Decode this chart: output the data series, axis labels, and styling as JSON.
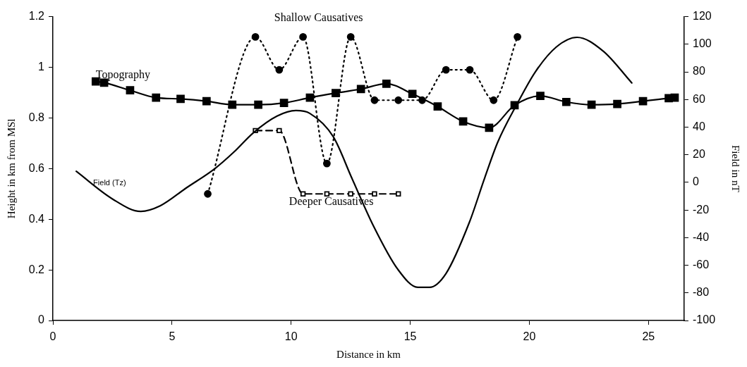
{
  "chart_data": {
    "type": "line",
    "xlabel": "Distance in km",
    "ylabel": "Height in km from MSl",
    "y2label": "Field in nT",
    "xlim": [
      0,
      26.5
    ],
    "xticks": [
      0,
      5,
      10,
      15,
      20,
      25
    ],
    "ylim": [
      0,
      1.2
    ],
    "yticks": [
      0,
      0.2,
      0.4,
      0.6,
      0.8,
      1,
      1.2
    ],
    "y2lim": [
      -100,
      120
    ],
    "y2ticks": [
      -100,
      -80,
      -60,
      -40,
      -20,
      0,
      20,
      40,
      60,
      80,
      100,
      120
    ],
    "grid": false,
    "legend": false,
    "series": [
      {
        "name": "Topography",
        "color": "#000000",
        "marker": "square",
        "line_style": "solid",
        "x": [
          1.8,
          2.15,
          3.24,
          4.33,
          5.36,
          6.45,
          7.53,
          8.62,
          9.7,
          10.79,
          11.87,
          12.93,
          14.0,
          15.09,
          16.15,
          17.22,
          18.31,
          19.38,
          20.46,
          21.55,
          22.61,
          23.69,
          24.77,
          25.85,
          26.1
        ],
        "values": [
          0.944,
          0.939,
          0.909,
          0.88,
          0.875,
          0.866,
          0.852,
          0.852,
          0.859,
          0.88,
          0.898,
          0.914,
          0.935,
          0.895,
          0.845,
          0.786,
          0.761,
          0.85,
          0.887,
          0.863,
          0.852,
          0.855,
          0.866,
          0.878,
          0.88
        ]
      },
      {
        "name": "Shallow Causatives",
        "color": "#000000",
        "marker": "circle",
        "line_style": "dotted",
        "x": [
          6.5,
          8.5,
          9.5,
          10.5,
          11.5,
          12.5,
          13.5,
          14.5,
          15.5,
          16.5,
          17.5,
          18.5,
          19.5
        ],
        "values": [
          0.5,
          1.12,
          0.99,
          1.12,
          0.62,
          1.12,
          0.87,
          0.87,
          0.87,
          0.99,
          0.99,
          0.87,
          1.12
        ]
      },
      {
        "name": "Deeper Causatives",
        "color": "#000000",
        "marker": "square-open",
        "line_style": "dashed",
        "x": [
          8.5,
          9.5,
          10.5,
          11.5,
          12.5,
          13.5,
          14.5
        ],
        "values": [
          0.75,
          0.75,
          0.5,
          0.5,
          0.5,
          0.5,
          0.5
        ]
      },
      {
        "name": "Field (Tz)",
        "axis": "y2",
        "color": "#000000",
        "marker": "none",
        "line_style": "solid",
        "x": [
          0.98,
          2.5,
          3.69,
          4.5,
          5.6,
          6.8,
          7.6,
          8.42,
          9.41,
          10.2,
          10.78,
          11.77,
          12.55,
          13.44,
          14.48,
          15.32,
          15.81,
          16.5,
          17.48,
          18.12,
          18.67,
          19.46,
          20.25,
          21.13,
          22.0,
          23.1,
          24.3
        ],
        "values": [
          8,
          -12,
          -21,
          -17,
          -4,
          10,
          22,
          36,
          48,
          52,
          50,
          33,
          3,
          -31,
          -63,
          -76,
          -76,
          -66,
          -29,
          3,
          29,
          56,
          80,
          98,
          105,
          95,
          72
        ]
      }
    ]
  }
}
